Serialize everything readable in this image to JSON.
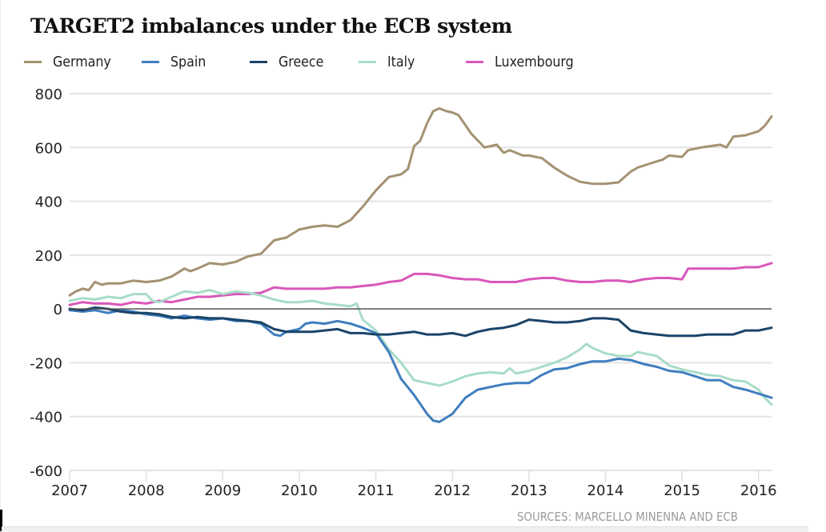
{
  "chart_data": {
    "type": "line",
    "title": "TARGET2 imbalances under the ECB system",
    "xlabel": "",
    "ylabel": "",
    "xlim": [
      2007,
      2016.17
    ],
    "ylim": [
      -600,
      800
    ],
    "grid": true,
    "legend_position": "top",
    "x_ticks": [
      "2007",
      "2008",
      "2009",
      "2010",
      "2011",
      "2012",
      "2013",
      "2014",
      "2015",
      "2016"
    ],
    "x_tick_values": [
      2007,
      2008,
      2009,
      2010,
      2011,
      2012,
      2013,
      2014,
      2015,
      2016
    ],
    "y_ticks": [
      "800",
      "600",
      "400",
      "200",
      "0",
      "-200",
      "-400",
      "-600"
    ],
    "y_tick_values": [
      800,
      600,
      400,
      200,
      0,
      -200,
      -400,
      -600
    ],
    "source": "SOURCES: MARCELLO MINENNA AND ECB",
    "series": [
      {
        "name": "Germany",
        "color": "#a39271",
        "x": [
          2007.0,
          2007.08,
          2007.17,
          2007.25,
          2007.33,
          2007.42,
          2007.5,
          2007.67,
          2007.83,
          2008.0,
          2008.17,
          2008.33,
          2008.5,
          2008.58,
          2008.67,
          2008.83,
          2009.0,
          2009.17,
          2009.33,
          2009.5,
          2009.67,
          2009.83,
          2010.0,
          2010.17,
          2010.33,
          2010.5,
          2010.67,
          2010.83,
          2011.0,
          2011.17,
          2011.33,
          2011.42,
          2011.5,
          2011.58,
          2011.67,
          2011.75,
          2011.83,
          2011.92,
          2012.0,
          2012.08,
          2012.25,
          2012.42,
          2012.58,
          2012.67,
          2012.75,
          2012.92,
          2013.0,
          2013.17,
          2013.33,
          2013.5,
          2013.67,
          2013.83,
          2014.0,
          2014.17,
          2014.33,
          2014.42,
          2014.58,
          2014.75,
          2014.83,
          2015.0,
          2015.08,
          2015.25,
          2015.5,
          2015.58,
          2015.67,
          2015.83,
          2016.0,
          2016.08,
          2016.17
        ],
        "values": [
          50,
          65,
          75,
          70,
          100,
          90,
          95,
          95,
          105,
          100,
          105,
          120,
          150,
          140,
          150,
          170,
          165,
          175,
          195,
          205,
          255,
          265,
          295,
          305,
          310,
          305,
          330,
          380,
          440,
          490,
          500,
          520,
          605,
          625,
          690,
          735,
          745,
          735,
          730,
          720,
          650,
          600,
          610,
          580,
          590,
          570,
          570,
          560,
          525,
          495,
          472,
          465,
          465,
          470,
          510,
          525,
          540,
          555,
          570,
          565,
          590,
          600,
          610,
          600,
          640,
          645,
          660,
          680,
          715
        ]
      },
      {
        "name": "Spain",
        "color": "#3f7ebf",
        "x": [
          2007.0,
          2007.17,
          2007.33,
          2007.5,
          2007.67,
          2007.83,
          2008.0,
          2008.17,
          2008.33,
          2008.5,
          2008.67,
          2008.83,
          2009.0,
          2009.17,
          2009.33,
          2009.5,
          2009.67,
          2009.75,
          2009.83,
          2010.0,
          2010.08,
          2010.17,
          2010.33,
          2010.5,
          2010.67,
          2010.83,
          2011.0,
          2011.17,
          2011.33,
          2011.5,
          2011.67,
          2011.75,
          2011.83,
          2012.0,
          2012.17,
          2012.33,
          2012.5,
          2012.67,
          2012.83,
          2013.0,
          2013.17,
          2013.33,
          2013.5,
          2013.67,
          2013.83,
          2014.0,
          2014.17,
          2014.33,
          2014.5,
          2014.67,
          2014.83,
          2015.0,
          2015.17,
          2015.33,
          2015.5,
          2015.67,
          2015.83,
          2016.0,
          2016.17
        ],
        "values": [
          -5,
          -10,
          -5,
          -15,
          -5,
          -10,
          -20,
          -25,
          -35,
          -25,
          -35,
          -40,
          -35,
          -45,
          -45,
          -55,
          -95,
          -100,
          -85,
          -75,
          -55,
          -50,
          -55,
          -45,
          -55,
          -70,
          -90,
          -160,
          -260,
          -320,
          -390,
          -415,
          -420,
          -390,
          -330,
          -300,
          -290,
          -280,
          -275,
          -275,
          -245,
          -225,
          -220,
          -205,
          -195,
          -195,
          -185,
          -190,
          -205,
          -215,
          -230,
          -235,
          -250,
          -265,
          -265,
          -290,
          -300,
          -315,
          -330
        ]
      },
      {
        "name": "Greece",
        "color": "#1a4468",
        "x": [
          2007.0,
          2007.17,
          2007.33,
          2007.5,
          2007.67,
          2007.83,
          2008.0,
          2008.17,
          2008.33,
          2008.5,
          2008.67,
          2008.83,
          2009.0,
          2009.17,
          2009.33,
          2009.5,
          2009.67,
          2009.83,
          2010.0,
          2010.17,
          2010.33,
          2010.5,
          2010.67,
          2010.83,
          2011.0,
          2011.17,
          2011.33,
          2011.5,
          2011.67,
          2011.83,
          2012.0,
          2012.17,
          2012.33,
          2012.5,
          2012.67,
          2012.83,
          2013.0,
          2013.17,
          2013.33,
          2013.5,
          2013.67,
          2013.83,
          2014.0,
          2014.17,
          2014.33,
          2014.5,
          2014.67,
          2014.83,
          2015.0,
          2015.17,
          2015.33,
          2015.5,
          2015.67,
          2015.83,
          2016.0,
          2016.17
        ],
        "values": [
          0,
          -5,
          5,
          0,
          -10,
          -15,
          -15,
          -20,
          -30,
          -35,
          -30,
          -35,
          -35,
          -40,
          -45,
          -50,
          -75,
          -85,
          -85,
          -85,
          -80,
          -75,
          -90,
          -90,
          -95,
          -95,
          -90,
          -85,
          -95,
          -95,
          -90,
          -100,
          -85,
          -75,
          -70,
          -60,
          -40,
          -45,
          -50,
          -50,
          -45,
          -35,
          -35,
          -40,
          -80,
          -90,
          -95,
          -100,
          -100,
          -100,
          -95,
          -95,
          -95,
          -80,
          -80,
          -70
        ]
      },
      {
        "name": "Italy",
        "color": "#a8dcc8",
        "x": [
          2007.0,
          2007.17,
          2007.33,
          2007.5,
          2007.67,
          2007.83,
          2008.0,
          2008.08,
          2008.17,
          2008.33,
          2008.5,
          2008.67,
          2008.83,
          2009.0,
          2009.17,
          2009.33,
          2009.5,
          2009.67,
          2009.83,
          2010.0,
          2010.17,
          2010.33,
          2010.5,
          2010.67,
          2010.75,
          2010.83,
          2011.0,
          2011.17,
          2011.33,
          2011.5,
          2011.67,
          2011.83,
          2012.0,
          2012.17,
          2012.33,
          2012.5,
          2012.67,
          2012.75,
          2012.83,
          2013.0,
          2013.17,
          2013.33,
          2013.5,
          2013.67,
          2013.75,
          2013.83,
          2014.0,
          2014.17,
          2014.33,
          2014.42,
          2014.5,
          2014.67,
          2014.83,
          2015.0,
          2015.17,
          2015.33,
          2015.5,
          2015.67,
          2015.83,
          2016.0,
          2016.08,
          2016.17
        ],
        "values": [
          30,
          40,
          35,
          45,
          40,
          55,
          55,
          30,
          25,
          45,
          65,
          60,
          70,
          55,
          65,
          60,
          50,
          35,
          25,
          25,
          30,
          20,
          15,
          10,
          20,
          -40,
          -80,
          -150,
          -200,
          -265,
          -275,
          -285,
          -270,
          -250,
          -240,
          -235,
          -240,
          -220,
          -240,
          -230,
          -215,
          -200,
          -180,
          -150,
          -130,
          -145,
          -165,
          -175,
          -175,
          -160,
          -165,
          -175,
          -210,
          -225,
          -235,
          -245,
          -250,
          -265,
          -270,
          -300,
          -330,
          -355
        ]
      },
      {
        "name": "Luxembourg",
        "color": "#d957b9",
        "x": [
          2007.0,
          2007.17,
          2007.33,
          2007.5,
          2007.67,
          2007.83,
          2008.0,
          2008.17,
          2008.33,
          2008.5,
          2008.67,
          2008.83,
          2009.0,
          2009.17,
          2009.33,
          2009.5,
          2009.67,
          2009.83,
          2010.0,
          2010.17,
          2010.33,
          2010.5,
          2010.67,
          2010.83,
          2011.0,
          2011.17,
          2011.33,
          2011.5,
          2011.67,
          2011.83,
          2012.0,
          2012.17,
          2012.33,
          2012.5,
          2012.67,
          2012.83,
          2013.0,
          2013.17,
          2013.33,
          2013.5,
          2013.67,
          2013.83,
          2014.0,
          2014.17,
          2014.33,
          2014.5,
          2014.67,
          2014.83,
          2015.0,
          2015.08,
          2015.25,
          2015.5,
          2015.67,
          2015.83,
          2016.0,
          2016.17
        ],
        "values": [
          15,
          25,
          20,
          20,
          15,
          25,
          20,
          30,
          25,
          35,
          45,
          45,
          50,
          55,
          55,
          60,
          80,
          75,
          75,
          75,
          75,
          80,
          80,
          85,
          90,
          100,
          105,
          130,
          130,
          125,
          115,
          110,
          110,
          100,
          100,
          100,
          110,
          115,
          115,
          105,
          100,
          100,
          105,
          105,
          100,
          110,
          115,
          115,
          110,
          150,
          150,
          150,
          150,
          155,
          155,
          170
        ]
      }
    ]
  }
}
